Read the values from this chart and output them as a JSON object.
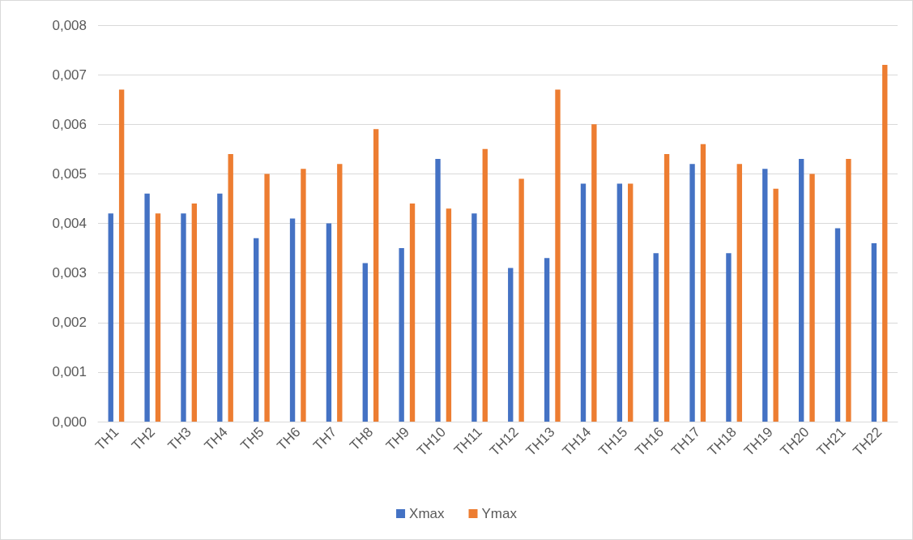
{
  "chart_data": {
    "type": "bar",
    "categories": [
      "TH1",
      "TH2",
      "TH3",
      "TH4",
      "TH5",
      "TH6",
      "TH7",
      "TH8",
      "TH9",
      "TH10",
      "TH11",
      "TH12",
      "TH13",
      "TH14",
      "TH15",
      "TH16",
      "TH17",
      "TH18",
      "TH19",
      "TH20",
      "TH21",
      "TH22"
    ],
    "series": [
      {
        "name": "Xmax",
        "color": "#4472c4",
        "values": [
          0.0042,
          0.0046,
          0.0042,
          0.0046,
          0.0037,
          0.0041,
          0.004,
          0.0032,
          0.0035,
          0.0053,
          0.0042,
          0.0031,
          0.0033,
          0.0048,
          0.0048,
          0.0034,
          0.0052,
          0.0034,
          0.0051,
          0.0053,
          0.0039,
          0.0036
        ]
      },
      {
        "name": "Ymax",
        "color": "#ed7d31",
        "values": [
          0.0067,
          0.0042,
          0.0044,
          0.0054,
          0.005,
          0.0051,
          0.0052,
          0.0059,
          0.0044,
          0.0043,
          0.0055,
          0.0049,
          0.0067,
          0.006,
          0.0048,
          0.0054,
          0.0056,
          0.0052,
          0.0047,
          0.005,
          0.0053,
          0.0072
        ]
      }
    ],
    "ylim": [
      0,
      0.008
    ],
    "yticks": [
      {
        "value": 0,
        "label": "0,000"
      },
      {
        "value": 0.001,
        "label": "0,001"
      },
      {
        "value": 0.002,
        "label": "0,002"
      },
      {
        "value": 0.003,
        "label": "0,003"
      },
      {
        "value": 0.004,
        "label": "0,004"
      },
      {
        "value": 0.005,
        "label": "0,005"
      },
      {
        "value": 0.006,
        "label": "0,006"
      },
      {
        "value": 0.007,
        "label": "0,007"
      },
      {
        "value": 0.008,
        "label": "0,008"
      }
    ],
    "grid": "y",
    "legend": "bottom"
  }
}
